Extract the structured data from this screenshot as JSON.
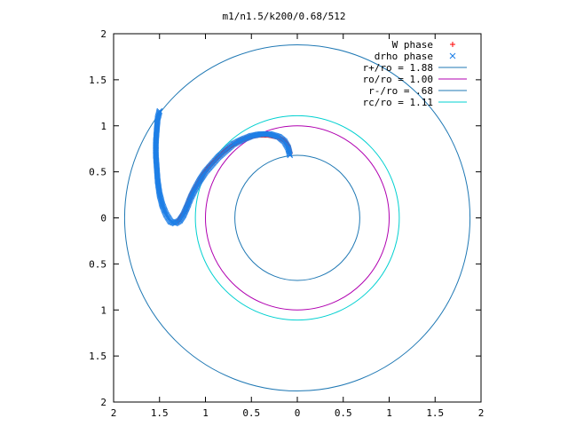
{
  "chart_data": {
    "type": "scatter",
    "title": "m1/n1.5/k200/0.68/512",
    "xlabel": "",
    "ylabel": "",
    "xlim": [
      -2,
      2
    ],
    "ylim": [
      -2,
      2
    ],
    "x_ticks": [
      -2,
      -1.5,
      -1,
      -0.5,
      0,
      0.5,
      1,
      1.5,
      2
    ],
    "x_tick_labels": [
      "2",
      "1.5",
      "1",
      "0.5",
      "0",
      "0.5",
      "1",
      "1.5",
      "2"
    ],
    "y_ticks": [
      2,
      1.5,
      1,
      0.5,
      0,
      -0.5,
      -1,
      -1.5,
      -2
    ],
    "y_tick_labels": [
      "2",
      "1.5",
      "1",
      "0.5",
      "0",
      "0.5",
      "1",
      "1.5",
      "2"
    ],
    "grid": false,
    "legend_position": "top-right",
    "series": [
      {
        "name": "W phase",
        "kind": "points",
        "marker": "+",
        "color": "#ff0000",
        "points": [
          [
            -0.08,
            0.7
          ],
          [
            -0.1,
            0.78
          ],
          [
            -0.14,
            0.84
          ],
          [
            -0.22,
            0.88
          ],
          [
            -0.32,
            0.9
          ],
          [
            -0.42,
            0.9
          ],
          [
            -0.52,
            0.88
          ],
          [
            -0.62,
            0.84
          ],
          [
            -0.72,
            0.78
          ],
          [
            -0.8,
            0.72
          ],
          [
            -0.88,
            0.64
          ],
          [
            -0.96,
            0.56
          ],
          [
            -1.02,
            0.48
          ],
          [
            -1.08,
            0.38
          ],
          [
            -1.14,
            0.28
          ],
          [
            -1.18,
            0.18
          ],
          [
            -1.22,
            0.08
          ],
          [
            -1.26,
            0.02
          ],
          [
            -1.3,
            -0.04
          ]
        ]
      },
      {
        "name": "drho phase",
        "kind": "points",
        "marker": "x",
        "color": "#1e7fe6",
        "points": [
          [
            -0.08,
            0.68
          ],
          [
            -0.1,
            0.76
          ],
          [
            -0.14,
            0.83
          ],
          [
            -0.2,
            0.88
          ],
          [
            -0.3,
            0.91
          ],
          [
            -0.4,
            0.91
          ],
          [
            -0.5,
            0.89
          ],
          [
            -0.6,
            0.85
          ],
          [
            -0.7,
            0.8
          ],
          [
            -0.78,
            0.73
          ],
          [
            -0.86,
            0.66
          ],
          [
            -0.93,
            0.58
          ],
          [
            -1.0,
            0.5
          ],
          [
            -1.06,
            0.41
          ],
          [
            -1.11,
            0.32
          ],
          [
            -1.16,
            0.22
          ],
          [
            -1.2,
            0.12
          ],
          [
            -1.24,
            0.03
          ],
          [
            -1.28,
            -0.03
          ],
          [
            -1.33,
            -0.06
          ],
          [
            -1.38,
            -0.04
          ],
          [
            -1.43,
            0.04
          ],
          [
            -1.47,
            0.14
          ],
          [
            -1.5,
            0.26
          ],
          [
            -1.52,
            0.4
          ],
          [
            -1.53,
            0.54
          ],
          [
            -1.54,
            0.68
          ],
          [
            -1.54,
            0.82
          ],
          [
            -1.53,
            0.96
          ],
          [
            -1.52,
            1.08
          ],
          [
            -1.5,
            1.16
          ]
        ]
      },
      {
        "name": "r+/ro = 1.88",
        "kind": "circle",
        "radius": 1.88,
        "color": "#1f78b4"
      },
      {
        "name": "ro/ro = 1.00",
        "kind": "circle",
        "radius": 1.0,
        "color": "#b000b0"
      },
      {
        "name": "r-/ro = .68",
        "kind": "circle",
        "radius": 0.68,
        "color": "#1f78b4"
      },
      {
        "name": "rc/ro = 1.11",
        "kind": "circle",
        "radius": 1.11,
        "color": "#00d0d0"
      }
    ]
  }
}
